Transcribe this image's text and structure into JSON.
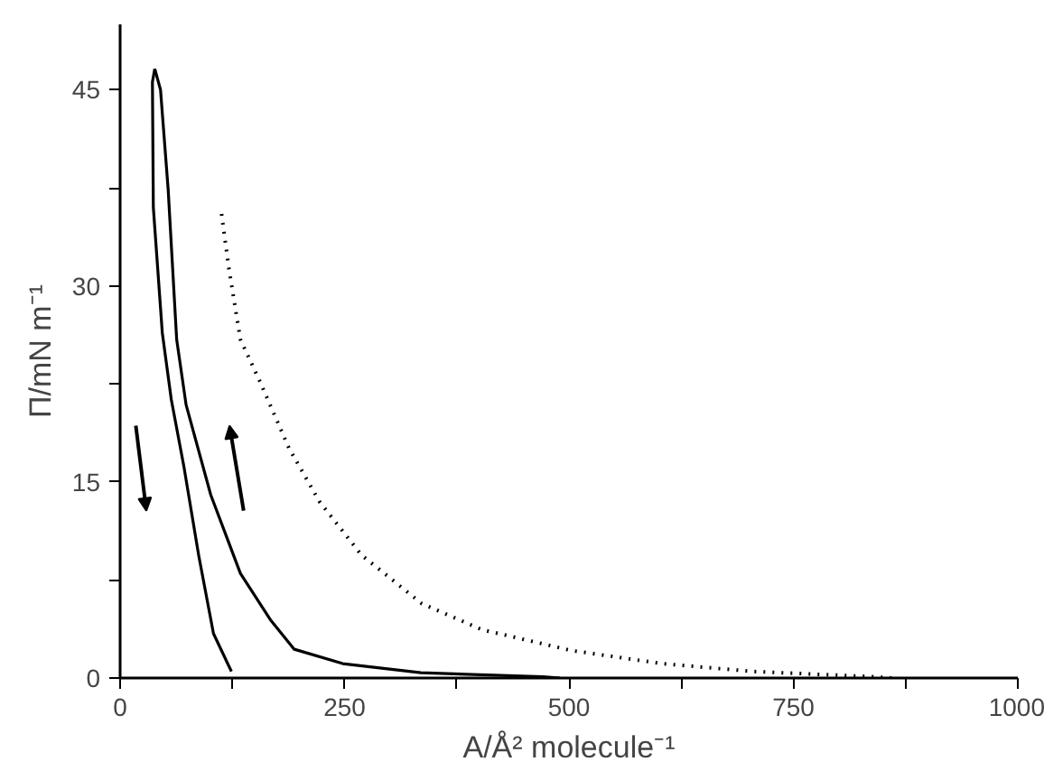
{
  "chart_data": {
    "type": "line",
    "xlabel": "A/Å² molecule⁻¹",
    "ylabel": "Π/mN m⁻¹",
    "xlim": [
      0,
      1000
    ],
    "ylim": [
      0,
      50
    ],
    "xticks": [
      0,
      {
        "value": 125,
        "label": null
      },
      250,
      {
        "value": 375,
        "label": null
      },
      500,
      {
        "value": 625,
        "label": null
      },
      750,
      {
        "value": 875,
        "label": null
      },
      1000
    ],
    "yticks": [
      0,
      {
        "value": 7.5,
        "label": null
      },
      15,
      {
        "value": 22.5,
        "label": null
      },
      30,
      {
        "value": 37.5,
        "label": null
      },
      45
    ],
    "grid": false,
    "series": [
      {
        "color": "#000000",
        "line_style": "solid",
        "x": [
          490,
          471,
          335,
          248,
          194,
          168,
          134,
          101,
          73.5,
          63,
          53.5,
          45,
          38.6
        ],
        "values": [
          0,
          0.1,
          0.4,
          1.1,
          2.2,
          4.4,
          8.0,
          14,
          20.9,
          25.9,
          37.4,
          45,
          46.6
        ]
      },
      {
        "color": "#000000",
        "line_style": "solid",
        "x": [
          38.6,
          36,
          37,
          47,
          57,
          71,
          87.5,
          104,
          124
        ],
        "values": [
          46.6,
          45.6,
          36,
          26.4,
          21.3,
          16.2,
          9.4,
          3.4,
          0.5
        ]
      },
      {
        "color": "#000000",
        "line_style": "dotted",
        "x": [
          113,
          121,
          134,
          155.6,
          188,
          222,
          269,
          336,
          403,
          503,
          604,
          705,
          838,
          860
        ],
        "values": [
          35.5,
          31.4,
          25.9,
          22.7,
          17.6,
          13.5,
          9.4,
          5.7,
          3.7,
          2.1,
          1.1,
          0.5,
          0.1,
          0
        ]
      }
    ]
  }
}
